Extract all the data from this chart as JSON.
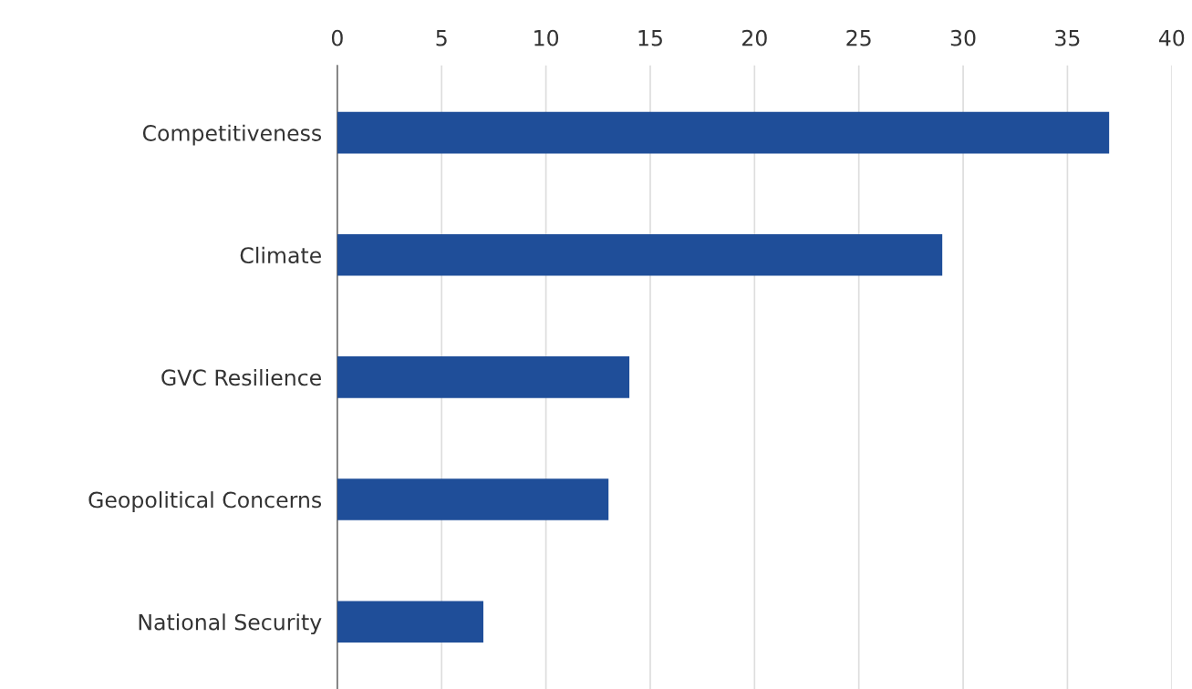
{
  "chart_data": {
    "type": "bar",
    "orientation": "horizontal",
    "categories": [
      "Competitiveness",
      "Climate",
      "GVC Resilience",
      "Geopolitical Concerns",
      "National Security"
    ],
    "values": [
      37,
      29,
      14,
      13,
      7
    ],
    "color": "#1f4e99",
    "xlim": [
      0,
      40
    ],
    "xticks": [
      0,
      5,
      10,
      15,
      20,
      25,
      30,
      35,
      40
    ],
    "grid": "x"
  }
}
